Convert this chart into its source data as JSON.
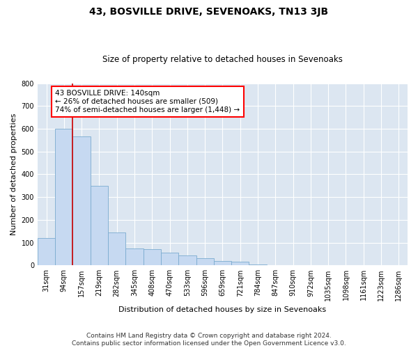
{
  "title": "43, BOSVILLE DRIVE, SEVENOAKS, TN13 3JB",
  "subtitle": "Size of property relative to detached houses in Sevenoaks",
  "xlabel": "Distribution of detached houses by size in Sevenoaks",
  "ylabel": "Number of detached properties",
  "footer_line1": "Contains HM Land Registry data © Crown copyright and database right 2024.",
  "footer_line2": "Contains public sector information licensed under the Open Government Licence v3.0.",
  "annotation_line1": "43 BOSVILLE DRIVE: 140sqm",
  "annotation_line2": "← 26% of detached houses are smaller (509)",
  "annotation_line3": "74% of semi-detached houses are larger (1,448) →",
  "bar_color": "#c6d9f1",
  "bar_edge_color": "#7aabcf",
  "red_line_color": "#cc0000",
  "background_color": "#dce6f1",
  "categories": [
    "31sqm",
    "94sqm",
    "157sqm",
    "219sqm",
    "282sqm",
    "345sqm",
    "408sqm",
    "470sqm",
    "533sqm",
    "596sqm",
    "659sqm",
    "721sqm",
    "784sqm",
    "847sqm",
    "910sqm",
    "972sqm",
    "1035sqm",
    "1098sqm",
    "1161sqm",
    "1223sqm",
    "1286sqm"
  ],
  "values": [
    120,
    600,
    565,
    350,
    145,
    75,
    70,
    55,
    45,
    30,
    20,
    15,
    5,
    0,
    0,
    0,
    0,
    0,
    0,
    0,
    0
  ],
  "ylim": [
    0,
    800
  ],
  "yticks": [
    0,
    100,
    200,
    300,
    400,
    500,
    600,
    700,
    800
  ],
  "red_line_bin": 1,
  "fig_width": 6.0,
  "fig_height": 5.0,
  "title_fontsize": 10,
  "subtitle_fontsize": 8.5,
  "ylabel_fontsize": 8,
  "xlabel_fontsize": 8,
  "tick_fontsize": 7,
  "annotation_fontsize": 7.5,
  "footer_fontsize": 6.5
}
